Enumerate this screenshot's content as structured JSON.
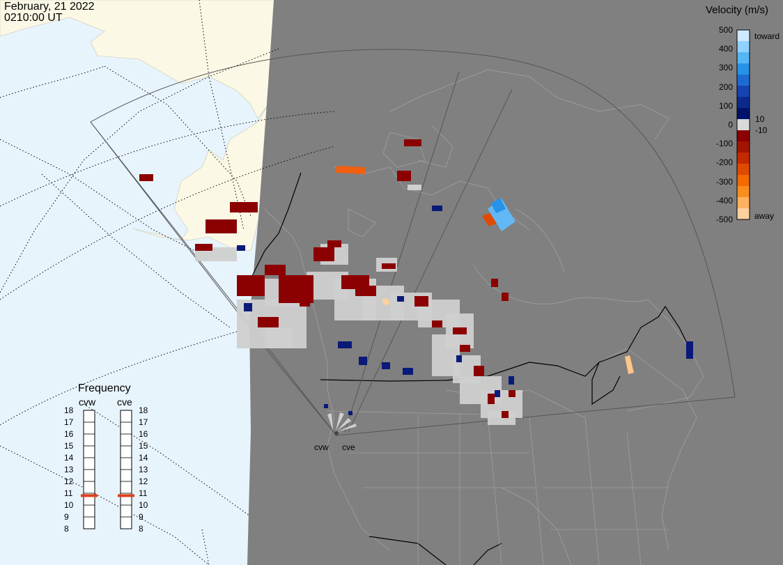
{
  "header": {
    "date": "February, 21 2022",
    "time": "0210:00 UT"
  },
  "colorbar": {
    "title": "Velocity (m/s)",
    "ticks": [
      "500",
      "400",
      "300",
      "200",
      "100",
      "0",
      "-100",
      "-200",
      "-300",
      "-400",
      "-500"
    ],
    "inner_labels": [
      "10",
      "-10"
    ],
    "toward_label": "toward",
    "away_label": "away",
    "colors": [
      "#cfe9ff",
      "#8fd2ff",
      "#56b6f5",
      "#2693e8",
      "#1d6bd2",
      "#1544b0",
      "#0b2a8c",
      "#01126b",
      "#d9d9d9",
      "#8b0000",
      "#a21400",
      "#c42a00",
      "#e04a00",
      "#f26a00",
      "#f98e20",
      "#ffb060",
      "#ffd0a0"
    ]
  },
  "frequency": {
    "title": "Frequency",
    "radars": [
      "cvw",
      "cve"
    ],
    "ticks": [
      "18",
      "17",
      "16",
      "15",
      "14",
      "13",
      "12",
      "11",
      "10",
      "9",
      "8"
    ],
    "marker_color": "#e0401a",
    "cvw_mhz": 10.8,
    "cve_mhz": 10.8
  },
  "radar_labels": [
    "cvw",
    "cve"
  ],
  "map_colors": {
    "ocean": "#e8f4fc",
    "land_day": "#fbf8e6",
    "night_shade": "#808080",
    "fov_outline": "#555555",
    "gridline": "#000000"
  }
}
